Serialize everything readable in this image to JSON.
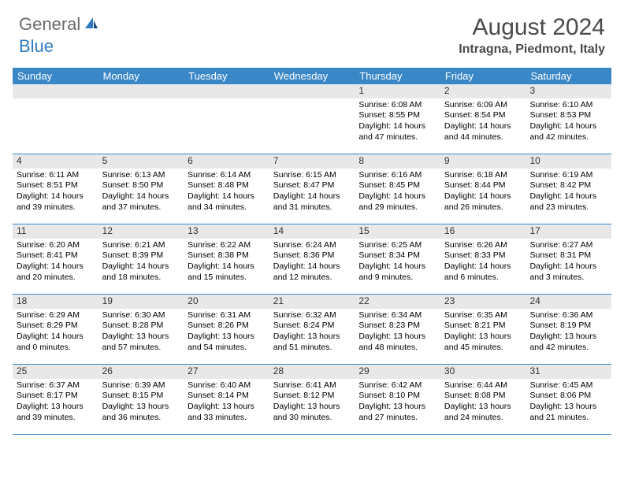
{
  "logo": {
    "general": "General",
    "blue": "Blue"
  },
  "title": "August 2024",
  "location": "Intragna, Piedmont, Italy",
  "weekdays": [
    "Sunday",
    "Monday",
    "Tuesday",
    "Wednesday",
    "Thursday",
    "Friday",
    "Saturday"
  ],
  "colors": {
    "header_bg": "#3a87c8",
    "header_text": "#ffffff",
    "daynum_bg": "#e8e8e8",
    "row_border": "#3a87c8",
    "logo_gray": "#6b6b6b",
    "logo_blue": "#2f7bbf"
  },
  "weeks": [
    [
      null,
      null,
      null,
      null,
      {
        "num": "1",
        "sunrise": "Sunrise: 6:08 AM",
        "sunset": "Sunset: 8:55 PM",
        "day1": "Daylight: 14 hours",
        "day2": "and 47 minutes."
      },
      {
        "num": "2",
        "sunrise": "Sunrise: 6:09 AM",
        "sunset": "Sunset: 8:54 PM",
        "day1": "Daylight: 14 hours",
        "day2": "and 44 minutes."
      },
      {
        "num": "3",
        "sunrise": "Sunrise: 6:10 AM",
        "sunset": "Sunset: 8:53 PM",
        "day1": "Daylight: 14 hours",
        "day2": "and 42 minutes."
      }
    ],
    [
      {
        "num": "4",
        "sunrise": "Sunrise: 6:11 AM",
        "sunset": "Sunset: 8:51 PM",
        "day1": "Daylight: 14 hours",
        "day2": "and 39 minutes."
      },
      {
        "num": "5",
        "sunrise": "Sunrise: 6:13 AM",
        "sunset": "Sunset: 8:50 PM",
        "day1": "Daylight: 14 hours",
        "day2": "and 37 minutes."
      },
      {
        "num": "6",
        "sunrise": "Sunrise: 6:14 AM",
        "sunset": "Sunset: 8:48 PM",
        "day1": "Daylight: 14 hours",
        "day2": "and 34 minutes."
      },
      {
        "num": "7",
        "sunrise": "Sunrise: 6:15 AM",
        "sunset": "Sunset: 8:47 PM",
        "day1": "Daylight: 14 hours",
        "day2": "and 31 minutes."
      },
      {
        "num": "8",
        "sunrise": "Sunrise: 6:16 AM",
        "sunset": "Sunset: 8:45 PM",
        "day1": "Daylight: 14 hours",
        "day2": "and 29 minutes."
      },
      {
        "num": "9",
        "sunrise": "Sunrise: 6:18 AM",
        "sunset": "Sunset: 8:44 PM",
        "day1": "Daylight: 14 hours",
        "day2": "and 26 minutes."
      },
      {
        "num": "10",
        "sunrise": "Sunrise: 6:19 AM",
        "sunset": "Sunset: 8:42 PM",
        "day1": "Daylight: 14 hours",
        "day2": "and 23 minutes."
      }
    ],
    [
      {
        "num": "11",
        "sunrise": "Sunrise: 6:20 AM",
        "sunset": "Sunset: 8:41 PM",
        "day1": "Daylight: 14 hours",
        "day2": "and 20 minutes."
      },
      {
        "num": "12",
        "sunrise": "Sunrise: 6:21 AM",
        "sunset": "Sunset: 8:39 PM",
        "day1": "Daylight: 14 hours",
        "day2": "and 18 minutes."
      },
      {
        "num": "13",
        "sunrise": "Sunrise: 6:22 AM",
        "sunset": "Sunset: 8:38 PM",
        "day1": "Daylight: 14 hours",
        "day2": "and 15 minutes."
      },
      {
        "num": "14",
        "sunrise": "Sunrise: 6:24 AM",
        "sunset": "Sunset: 8:36 PM",
        "day1": "Daylight: 14 hours",
        "day2": "and 12 minutes."
      },
      {
        "num": "15",
        "sunrise": "Sunrise: 6:25 AM",
        "sunset": "Sunset: 8:34 PM",
        "day1": "Daylight: 14 hours",
        "day2": "and 9 minutes."
      },
      {
        "num": "16",
        "sunrise": "Sunrise: 6:26 AM",
        "sunset": "Sunset: 8:33 PM",
        "day1": "Daylight: 14 hours",
        "day2": "and 6 minutes."
      },
      {
        "num": "17",
        "sunrise": "Sunrise: 6:27 AM",
        "sunset": "Sunset: 8:31 PM",
        "day1": "Daylight: 14 hours",
        "day2": "and 3 minutes."
      }
    ],
    [
      {
        "num": "18",
        "sunrise": "Sunrise: 6:29 AM",
        "sunset": "Sunset: 8:29 PM",
        "day1": "Daylight: 14 hours",
        "day2": "and 0 minutes."
      },
      {
        "num": "19",
        "sunrise": "Sunrise: 6:30 AM",
        "sunset": "Sunset: 8:28 PM",
        "day1": "Daylight: 13 hours",
        "day2": "and 57 minutes."
      },
      {
        "num": "20",
        "sunrise": "Sunrise: 6:31 AM",
        "sunset": "Sunset: 8:26 PM",
        "day1": "Daylight: 13 hours",
        "day2": "and 54 minutes."
      },
      {
        "num": "21",
        "sunrise": "Sunrise: 6:32 AM",
        "sunset": "Sunset: 8:24 PM",
        "day1": "Daylight: 13 hours",
        "day2": "and 51 minutes."
      },
      {
        "num": "22",
        "sunrise": "Sunrise: 6:34 AM",
        "sunset": "Sunset: 8:23 PM",
        "day1": "Daylight: 13 hours",
        "day2": "and 48 minutes."
      },
      {
        "num": "23",
        "sunrise": "Sunrise: 6:35 AM",
        "sunset": "Sunset: 8:21 PM",
        "day1": "Daylight: 13 hours",
        "day2": "and 45 minutes."
      },
      {
        "num": "24",
        "sunrise": "Sunrise: 6:36 AM",
        "sunset": "Sunset: 8:19 PM",
        "day1": "Daylight: 13 hours",
        "day2": "and 42 minutes."
      }
    ],
    [
      {
        "num": "25",
        "sunrise": "Sunrise: 6:37 AM",
        "sunset": "Sunset: 8:17 PM",
        "day1": "Daylight: 13 hours",
        "day2": "and 39 minutes."
      },
      {
        "num": "26",
        "sunrise": "Sunrise: 6:39 AM",
        "sunset": "Sunset: 8:15 PM",
        "day1": "Daylight: 13 hours",
        "day2": "and 36 minutes."
      },
      {
        "num": "27",
        "sunrise": "Sunrise: 6:40 AM",
        "sunset": "Sunset: 8:14 PM",
        "day1": "Daylight: 13 hours",
        "day2": "and 33 minutes."
      },
      {
        "num": "28",
        "sunrise": "Sunrise: 6:41 AM",
        "sunset": "Sunset: 8:12 PM",
        "day1": "Daylight: 13 hours",
        "day2": "and 30 minutes."
      },
      {
        "num": "29",
        "sunrise": "Sunrise: 6:42 AM",
        "sunset": "Sunset: 8:10 PM",
        "day1": "Daylight: 13 hours",
        "day2": "and 27 minutes."
      },
      {
        "num": "30",
        "sunrise": "Sunrise: 6:44 AM",
        "sunset": "Sunset: 8:08 PM",
        "day1": "Daylight: 13 hours",
        "day2": "and 24 minutes."
      },
      {
        "num": "31",
        "sunrise": "Sunrise: 6:45 AM",
        "sunset": "Sunset: 8:06 PM",
        "day1": "Daylight: 13 hours",
        "day2": "and 21 minutes."
      }
    ]
  ]
}
